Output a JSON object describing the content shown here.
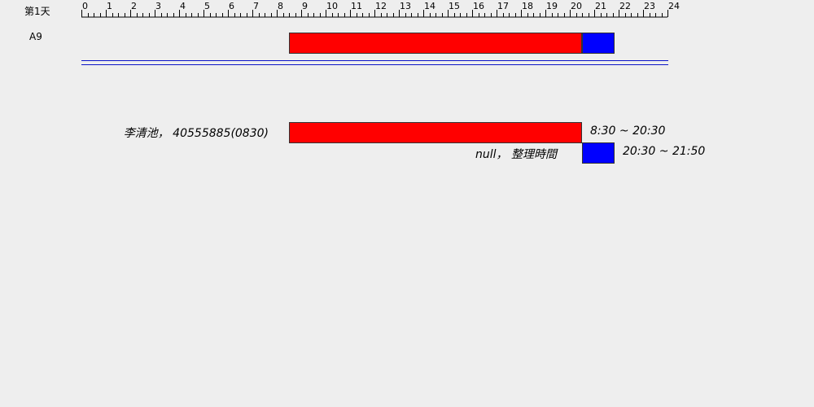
{
  "header": {
    "day_label": "第1天"
  },
  "ruler": {
    "min_hour": 0,
    "max_hour": 24,
    "major_labels": [
      "0",
      "1",
      "2",
      "3",
      "4",
      "5",
      "6",
      "7",
      "8",
      "9",
      "10",
      "11",
      "12",
      "13",
      "14",
      "15",
      "16",
      "17",
      "18",
      "19",
      "20",
      "21",
      "22",
      "23",
      "24"
    ],
    "minor_ticks_per_hour": 4
  },
  "rows": [
    {
      "label": "A9",
      "segments": [
        {
          "kind": "work",
          "start_hour": 8.5,
          "end_hour": 20.5
        },
        {
          "kind": "break",
          "start_hour": 20.5,
          "end_hour": 21.8333
        }
      ]
    }
  ],
  "details": [
    {
      "label": "李清池， 40555885(0830)",
      "time_text": "8:30 ~ 20:30",
      "start_hour": 8.5,
      "end_hour": 20.5,
      "kind": "work"
    },
    {
      "label": "null， 整理時間",
      "time_text": "20:30 ~ 21:50",
      "start_hour": 20.5,
      "end_hour": 21.8333,
      "kind": "break"
    }
  ],
  "colors": {
    "work": "#ff0000",
    "break": "#0000ff",
    "divider": "#0a14c8",
    "background": "#eeeeee"
  }
}
